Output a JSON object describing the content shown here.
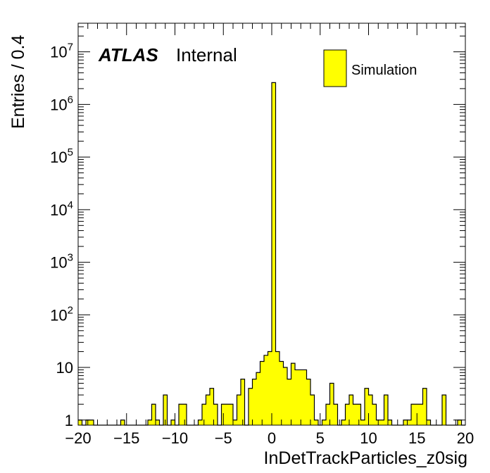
{
  "chart_data": {
    "type": "bar",
    "style": "histogram",
    "xlabel": "InDetTrackParticles_z0sig",
    "ylabel": "Entries / 0.4",
    "xlim": [
      -20,
      20
    ],
    "ylim": [
      0.8,
      35000000
    ],
    "yscale": "log",
    "bin_width": 0.4,
    "x_ticks": [
      -20,
      -15,
      -10,
      -5,
      0,
      5,
      10,
      15,
      20
    ],
    "x_tick_labels": [
      "−20",
      "−15",
      "−10",
      "−5",
      "0",
      "5",
      "10",
      "15",
      "20"
    ],
    "y_ticks": [
      1,
      10,
      100,
      1000,
      10000,
      100000,
      1000000,
      10000000
    ],
    "y_tick_labels": [
      {
        "base": "1",
        "exp": ""
      },
      {
        "base": "10",
        "exp": ""
      },
      {
        "base": "10",
        "exp": "2"
      },
      {
        "base": "10",
        "exp": "3"
      },
      {
        "base": "10",
        "exp": "4"
      },
      {
        "base": "10",
        "exp": "5"
      },
      {
        "base": "10",
        "exp": "6"
      },
      {
        "base": "10",
        "exp": "7"
      }
    ],
    "fill_color": "#ffff00",
    "line_color": "#000000",
    "grid": false,
    "legend_position": "top-right",
    "series": [
      {
        "name": "Simulation",
        "bins": [
          [
            -20.0,
            1
          ],
          [
            -19.2,
            1
          ],
          [
            -18.8,
            1
          ],
          [
            -15.6,
            1
          ],
          [
            -12.8,
            1
          ],
          [
            -12.4,
            2
          ],
          [
            -12.0,
            1
          ],
          [
            -11.2,
            3
          ],
          [
            -10.4,
            1
          ],
          [
            -9.6,
            2
          ],
          [
            -9.2,
            2
          ],
          [
            -7.6,
            1
          ],
          [
            -7.2,
            2
          ],
          [
            -6.8,
            3
          ],
          [
            -6.4,
            4
          ],
          [
            -6.0,
            2
          ],
          [
            -5.2,
            2
          ],
          [
            -4.8,
            2
          ],
          [
            -4.4,
            2
          ],
          [
            -4.0,
            1
          ],
          [
            -3.6,
            3
          ],
          [
            -3.2,
            6
          ],
          [
            -2.4,
            4
          ],
          [
            -2.0,
            6
          ],
          [
            -1.6,
            8
          ],
          [
            -1.2,
            13
          ],
          [
            -0.8,
            17
          ],
          [
            -0.4,
            20
          ],
          [
            0.0,
            2600000
          ],
          [
            0.4,
            20
          ],
          [
            0.8,
            13
          ],
          [
            1.2,
            10
          ],
          [
            1.6,
            6
          ],
          [
            2.0,
            12
          ],
          [
            2.4,
            9
          ],
          [
            2.8,
            9
          ],
          [
            3.2,
            9
          ],
          [
            3.6,
            6
          ],
          [
            4.0,
            3
          ],
          [
            4.4,
            1
          ],
          [
            5.2,
            1
          ],
          [
            5.6,
            2
          ],
          [
            6.0,
            5
          ],
          [
            6.4,
            2
          ],
          [
            7.2,
            1
          ],
          [
            7.6,
            2
          ],
          [
            8.0,
            3
          ],
          [
            8.4,
            2
          ],
          [
            8.8,
            2
          ],
          [
            9.2,
            1
          ],
          [
            9.6,
            4
          ],
          [
            10.0,
            3
          ],
          [
            10.4,
            2
          ],
          [
            10.8,
            1
          ],
          [
            11.2,
            1
          ],
          [
            11.6,
            3
          ],
          [
            12.0,
            1
          ],
          [
            13.6,
            1
          ],
          [
            14.0,
            1
          ],
          [
            14.4,
            2
          ],
          [
            14.8,
            2
          ],
          [
            15.2,
            2
          ],
          [
            15.6,
            4
          ],
          [
            16.0,
            1
          ],
          [
            17.6,
            3
          ],
          [
            19.2,
            1
          ]
        ]
      }
    ],
    "annotations": {
      "atlas_label": "ATLAS",
      "atlas_status": "Internal"
    }
  }
}
